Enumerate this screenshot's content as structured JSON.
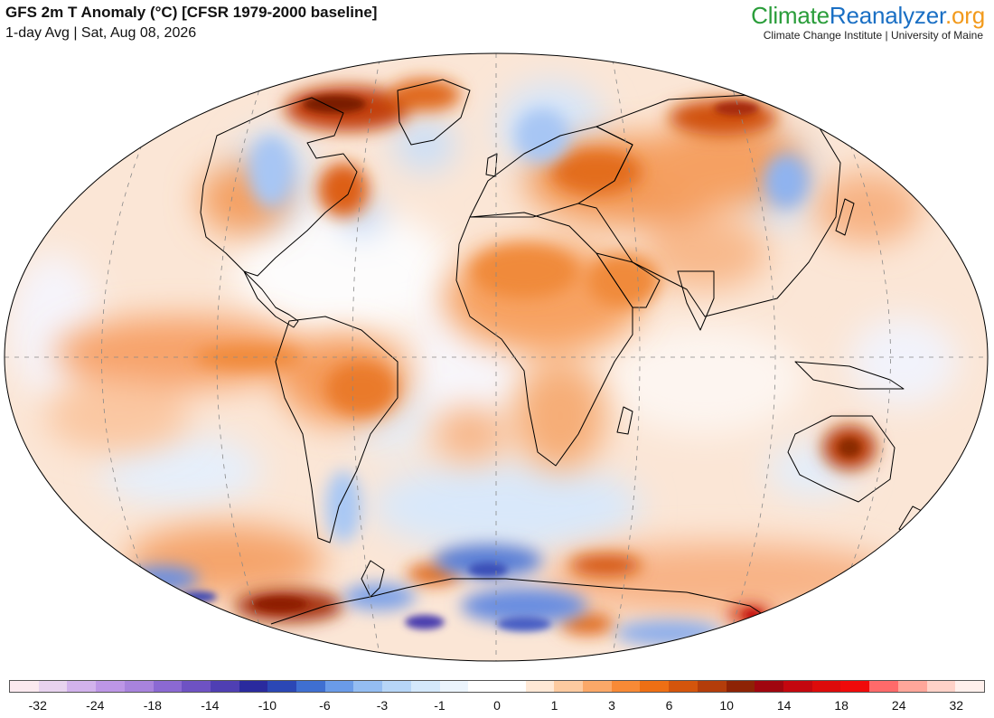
{
  "header": {
    "title": "GFS 2m T Anomaly (°C) [CFSR 1979-2000 baseline]",
    "subtitle": "1-day Avg | Sat, Aug 08, 2026",
    "brand_part1": "Climate",
    "brand_part2": "Reanalyzer",
    "brand_part3": ".org",
    "brand_tagline": "Climate Change Institute | University of Maine"
  },
  "colors": {
    "ocean_neutral": "#f7f7fb",
    "coast": "#000000",
    "graticule": "#888888"
  },
  "colorbar": {
    "swatches": [
      "#fbe9ef",
      "#e8d3ef",
      "#d2b2ec",
      "#bd96e6",
      "#a883dd",
      "#8b69d3",
      "#6e52c3",
      "#4f3fb3",
      "#2a2a9e",
      "#2b47b5",
      "#3f6fd1",
      "#6a9be8",
      "#94bdf2",
      "#b7d6f7",
      "#d4e8fb",
      "#ebf4fd",
      "#ffffff",
      "#ffffff",
      "#ffe8d6",
      "#fdcaa0",
      "#fba868",
      "#f88a36",
      "#ee6f14",
      "#d4550c",
      "#b43d0a",
      "#8e2305",
      "#a0060f",
      "#c4070f",
      "#dd0b0b",
      "#f00a0a",
      "#ff6a6a",
      "#ffa69a",
      "#ffd2c8",
      "#fff0ec"
    ],
    "labels": [
      "-32",
      "-24",
      "-18",
      "-14",
      "-10",
      "-6",
      "-3",
      "-1",
      "0",
      "1",
      "3",
      "6",
      "10",
      "14",
      "18",
      "24",
      "32"
    ]
  },
  "regions": [
    {
      "name": "north-america-west",
      "value": 3
    },
    {
      "name": "hudson-greenland-north",
      "value": 10
    },
    {
      "name": "east-pacific-tropical",
      "value": 3
    },
    {
      "name": "south-america",
      "value": 3
    },
    {
      "name": "sahara-arabia",
      "value": 3
    },
    {
      "name": "russia-siberia",
      "value": 6
    },
    {
      "name": "australia-interior",
      "value": 10
    },
    {
      "name": "southern-ocean-cold",
      "value": -6
    },
    {
      "name": "antarctica-warm",
      "value": 14
    }
  ]
}
